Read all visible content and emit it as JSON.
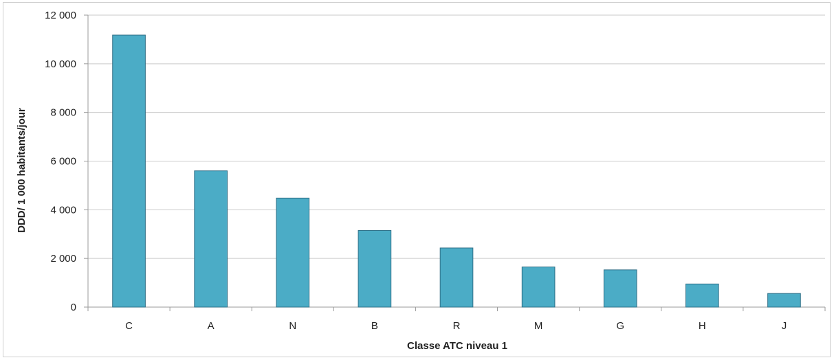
{
  "chart_data": {
    "type": "bar",
    "categories": [
      "C",
      "A",
      "N",
      "B",
      "R",
      "M",
      "G",
      "H",
      "J"
    ],
    "values": [
      11180,
      5600,
      4480,
      3150,
      2430,
      1650,
      1530,
      950,
      560
    ],
    "title": "",
    "xlabel": "Classe ATC niveau 1",
    "ylabel": "DDD/ 1 000 habitants/jour",
    "ylim": [
      0,
      12000
    ],
    "yticks": [
      0,
      2000,
      4000,
      6000,
      8000,
      10000,
      12000
    ],
    "ytick_labels": [
      "0",
      "2 000",
      "4 000",
      "6 000",
      "8 000",
      "10 000",
      "12 000"
    ],
    "grid": true,
    "legend": "none",
    "bar_color": "#4bacc6",
    "bar_edge_color": "#2f6f86"
  }
}
